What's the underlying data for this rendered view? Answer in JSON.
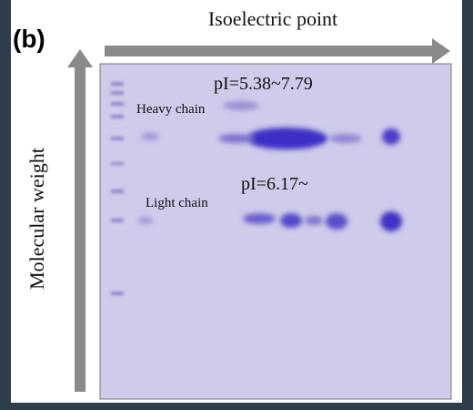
{
  "panel_label": "(b)",
  "x_axis_label": "Isoelectric point",
  "y_axis_label": "Molecular weight",
  "annotations": {
    "heavy_pi": "pI=5.38~7.79",
    "heavy_chain": "Heavy chain",
    "light_pi": "pI=6.17~",
    "light_chain": "Light chain"
  }
}
